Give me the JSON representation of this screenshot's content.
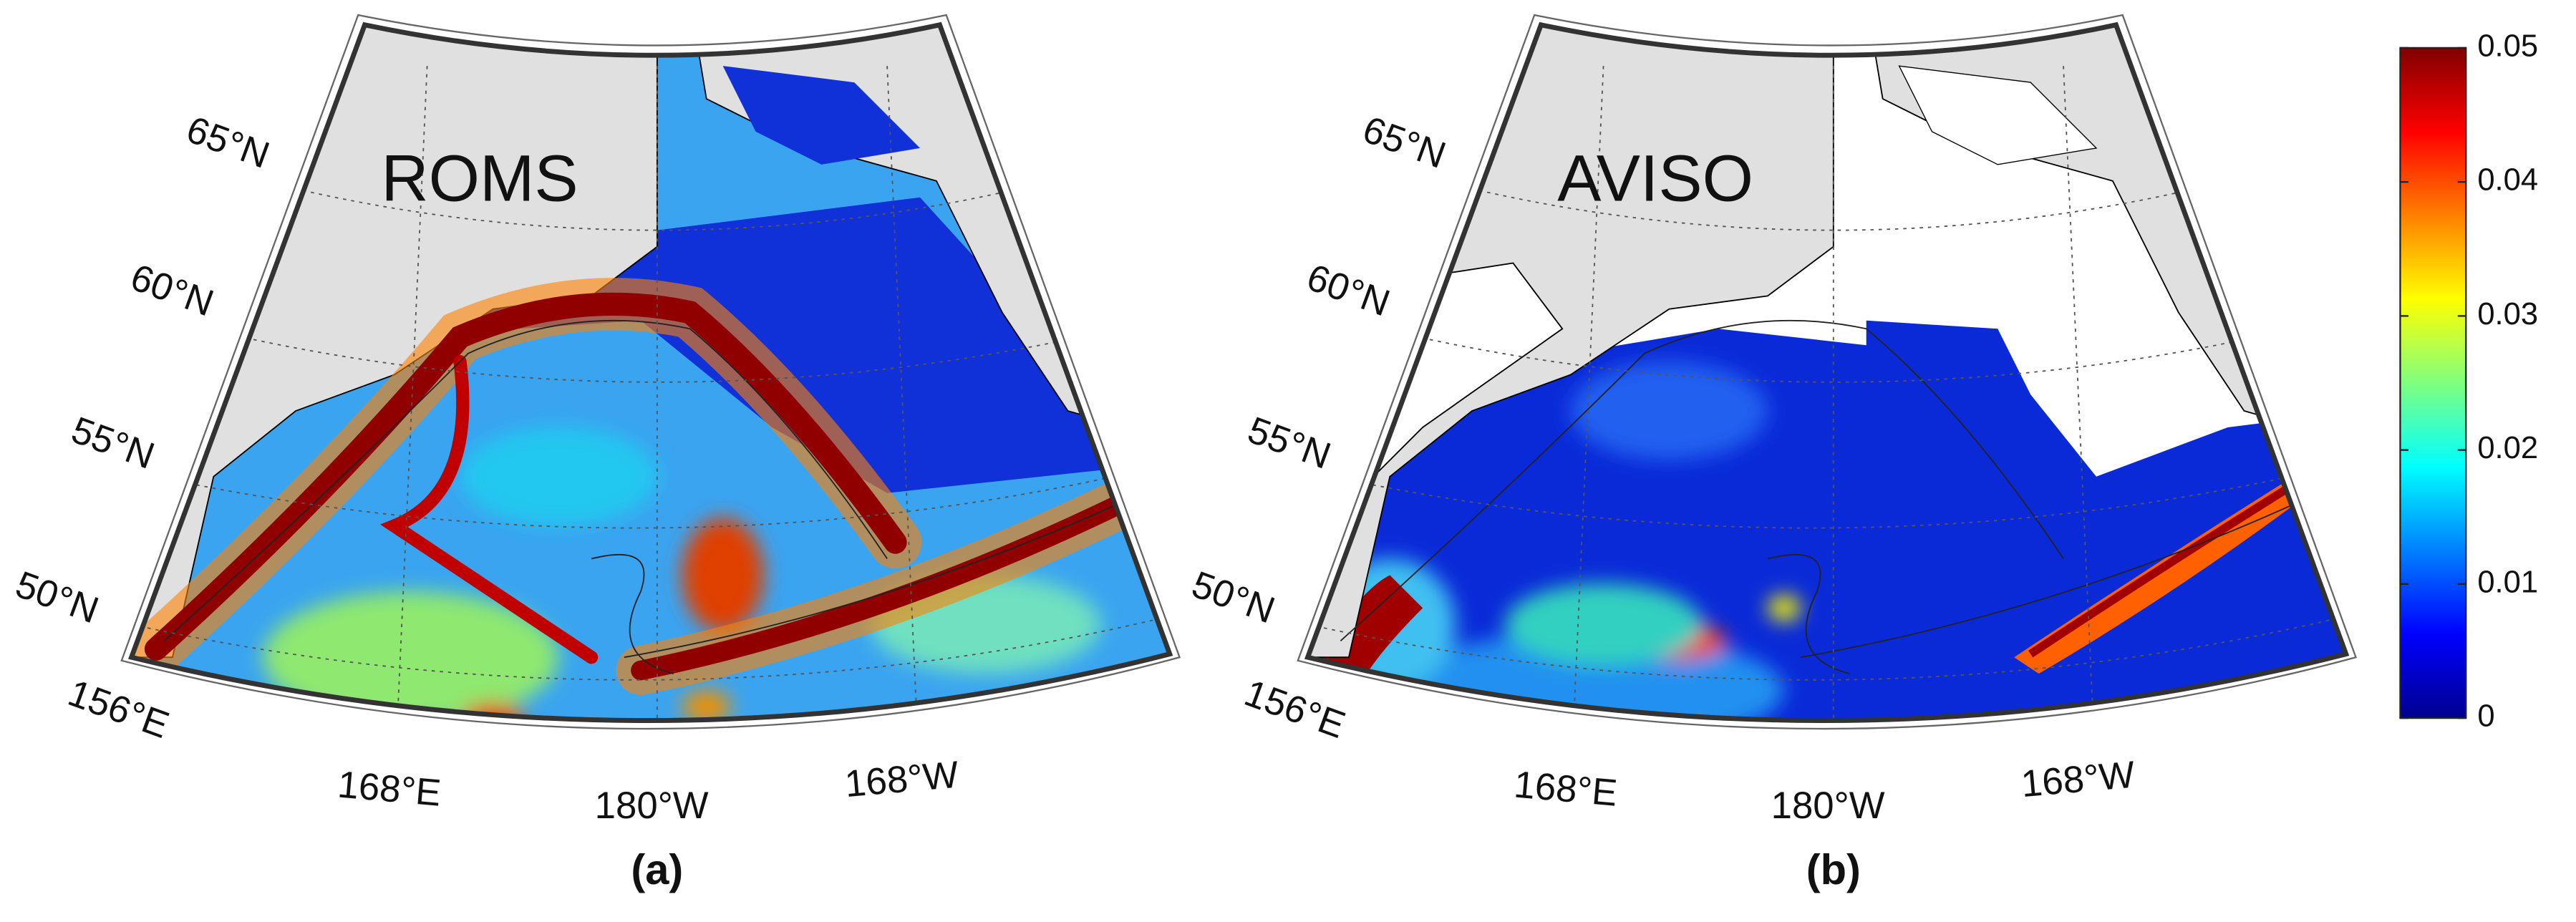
{
  "panels": [
    {
      "title": "ROMS",
      "label": "(a)",
      "lat_labels": [
        "65°N",
        "60°N",
        "55°N",
        "50°N"
      ],
      "lon_labels": [
        "156°E",
        "168°E",
        "180°W",
        "168°W"
      ]
    },
    {
      "title": "AVISO",
      "label": "(b)",
      "lat_labels": [
        "65°N",
        "60°N",
        "55°N",
        "50°N"
      ],
      "lon_labels": [
        "156°E",
        "168°E",
        "180°W",
        "168°W"
      ]
    }
  ],
  "colorbar": {
    "lim": [
      0,
      0.05
    ],
    "ticks": [
      0,
      0.01,
      0.02,
      0.03,
      0.04,
      0.05
    ]
  }
}
